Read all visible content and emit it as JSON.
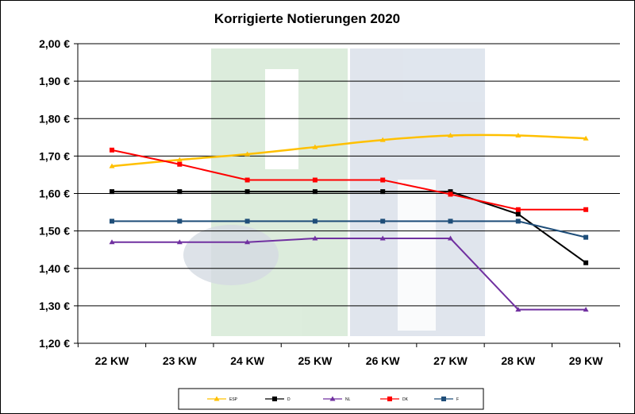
{
  "chart_data": {
    "type": "line",
    "title": "Korrigierte Notierungen 2020",
    "xlabel": "",
    "ylabel": "",
    "categories": [
      "22 KW",
      "23 KW",
      "24 KW",
      "25 KW",
      "26 KW",
      "27 KW",
      "28 KW",
      "29 KW"
    ],
    "y_ticks": [
      "1,20 €",
      "1,30 €",
      "1,40 €",
      "1,50 €",
      "1,60 €",
      "1,70 €",
      "1,80 €",
      "1,90 €",
      "2,00 €"
    ],
    "ylim": [
      1.2,
      2.0
    ],
    "grid": true,
    "legend_position": "bottom",
    "series": [
      {
        "name": "ESP",
        "color": "#FFC000",
        "marker": "triangle",
        "smooth": true,
        "values": [
          1.673,
          1.69,
          1.705,
          1.724,
          1.743,
          1.755,
          1.755,
          1.747
        ]
      },
      {
        "name": "D",
        "color": "#000000",
        "marker": "square",
        "values": [
          1.605,
          1.605,
          1.605,
          1.605,
          1.605,
          1.605,
          1.545,
          1.415
        ]
      },
      {
        "name": "NL",
        "color": "#7030A0",
        "marker": "triangle",
        "values": [
          1.47,
          1.47,
          1.47,
          1.48,
          1.48,
          1.48,
          1.29,
          1.29
        ]
      },
      {
        "name": "DK",
        "color": "#FF0000",
        "marker": "square",
        "values": [
          1.716,
          1.678,
          1.636,
          1.636,
          1.636,
          1.598,
          1.557,
          1.557
        ]
      },
      {
        "name": "F",
        "color": "#1F4E79",
        "marker": "square",
        "values": [
          1.526,
          1.526,
          1.526,
          1.526,
          1.526,
          1.526,
          1.526,
          1.483
        ]
      }
    ]
  }
}
